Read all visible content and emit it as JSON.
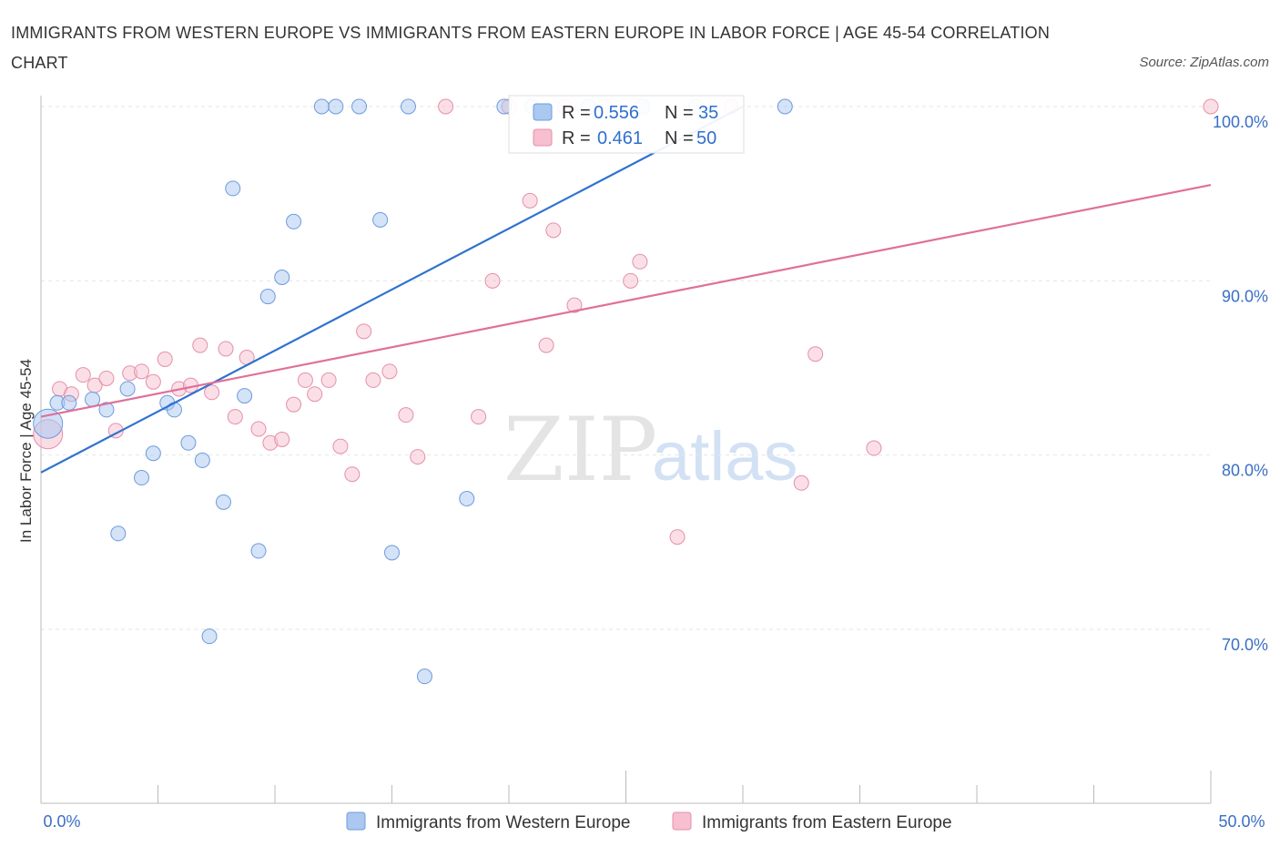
{
  "header": {
    "title": "IMMIGRANTS FROM WESTERN EUROPE VS IMMIGRANTS FROM EASTERN EUROPE IN LABOR FORCE | AGE 45-54 CORRELATION CHART",
    "source": "Source: ZipAtlas.com"
  },
  "watermark": {
    "zip": "ZIP",
    "atlas": "atlas"
  },
  "colors": {
    "western_fill": "#aac8f0",
    "western_stroke": "#6d9bdc",
    "western_line": "#2f72d0",
    "eastern_fill": "#f7bfd0",
    "eastern_stroke": "#e58fab",
    "eastern_line": "#e07099",
    "grid": "#e6e6e6",
    "axis_label": "#3a6fc4"
  },
  "stats": {
    "western": {
      "r_label": "R =",
      "r_value": "0.556",
      "n_label": "N =",
      "n_value": "35"
    },
    "eastern": {
      "r_label": "R =",
      "r_value": "0.461",
      "n_label": "N =",
      "n_value": "50"
    }
  },
  "chart_data": {
    "type": "scatter",
    "title": "IMMIGRANTS FROM WESTERN EUROPE VS IMMIGRANTS FROM EASTERN EUROPE IN LABOR FORCE | AGE 45-54 CORRELATION CHART",
    "xlabel": "",
    "ylabel": "In Labor Force | Age 45-54",
    "xlim": [
      0,
      50
    ],
    "ylim": [
      60,
      100
    ],
    "x_tick_labels": [
      {
        "value": 0,
        "label": "0.0%"
      },
      {
        "value": 50,
        "label": "50.0%"
      }
    ],
    "y_tick_labels": [
      {
        "value": 100,
        "label": "100.0%"
      },
      {
        "value": 90,
        "label": "90.0%"
      },
      {
        "value": 80,
        "label": "80.0%"
      },
      {
        "value": 70,
        "label": "70.0%"
      }
    ],
    "grid": true,
    "legend_position": "bottom",
    "series": [
      {
        "name": "Immigrants from Western Europe",
        "color": "western",
        "trend": {
          "x": [
            0,
            30
          ],
          "y": [
            79.0,
            100.0
          ]
        },
        "points": [
          {
            "x": 0.3,
            "y": 81.8,
            "big": true
          },
          {
            "x": 0.7,
            "y": 83.0
          },
          {
            "x": 1.2,
            "y": 83.0
          },
          {
            "x": 2.2,
            "y": 83.2
          },
          {
            "x": 2.8,
            "y": 82.6
          },
          {
            "x": 3.7,
            "y": 83.8
          },
          {
            "x": 4.3,
            "y": 78.7
          },
          {
            "x": 3.3,
            "y": 75.5
          },
          {
            "x": 4.8,
            "y": 80.1
          },
          {
            "x": 5.4,
            "y": 83.0
          },
          {
            "x": 5.7,
            "y": 82.6
          },
          {
            "x": 6.3,
            "y": 80.7
          },
          {
            "x": 6.9,
            "y": 79.7
          },
          {
            "x": 7.2,
            "y": 69.6
          },
          {
            "x": 7.8,
            "y": 77.3
          },
          {
            "x": 8.2,
            "y": 95.3
          },
          {
            "x": 8.7,
            "y": 83.4
          },
          {
            "x": 9.3,
            "y": 74.5
          },
          {
            "x": 9.7,
            "y": 89.1
          },
          {
            "x": 10.3,
            "y": 90.2
          },
          {
            "x": 10.8,
            "y": 93.4
          },
          {
            "x": 12.0,
            "y": 100.0
          },
          {
            "x": 12.6,
            "y": 100.0
          },
          {
            "x": 13.6,
            "y": 100.0
          },
          {
            "x": 14.5,
            "y": 93.5
          },
          {
            "x": 15.0,
            "y": 74.4
          },
          {
            "x": 15.7,
            "y": 100.0
          },
          {
            "x": 16.4,
            "y": 67.3
          },
          {
            "x": 18.2,
            "y": 77.5
          },
          {
            "x": 19.8,
            "y": 100.0
          },
          {
            "x": 21.0,
            "y": 100.0
          },
          {
            "x": 23.4,
            "y": 100.0
          },
          {
            "x": 25.7,
            "y": 100.0
          },
          {
            "x": 28.0,
            "y": 100.0
          },
          {
            "x": 31.8,
            "y": 100.0
          }
        ]
      },
      {
        "name": "Immigrants from Eastern Europe",
        "color": "eastern",
        "trend": {
          "x": [
            0,
            50
          ],
          "y": [
            82.2,
            95.5
          ]
        },
        "points": [
          {
            "x": 0.3,
            "y": 81.2,
            "big": true
          },
          {
            "x": 0.8,
            "y": 83.8
          },
          {
            "x": 1.3,
            "y": 83.5
          },
          {
            "x": 1.8,
            "y": 84.6
          },
          {
            "x": 2.3,
            "y": 84.0
          },
          {
            "x": 2.8,
            "y": 84.4
          },
          {
            "x": 3.2,
            "y": 81.4
          },
          {
            "x": 3.8,
            "y": 84.7
          },
          {
            "x": 4.3,
            "y": 84.8
          },
          {
            "x": 4.8,
            "y": 84.2
          },
          {
            "x": 5.3,
            "y": 85.5
          },
          {
            "x": 5.9,
            "y": 83.8
          },
          {
            "x": 6.4,
            "y": 84.0
          },
          {
            "x": 6.8,
            "y": 86.3
          },
          {
            "x": 7.3,
            "y": 83.6
          },
          {
            "x": 7.9,
            "y": 86.1
          },
          {
            "x": 8.3,
            "y": 82.2
          },
          {
            "x": 8.8,
            "y": 85.6
          },
          {
            "x": 9.3,
            "y": 81.5
          },
          {
            "x": 9.8,
            "y": 80.7
          },
          {
            "x": 10.3,
            "y": 80.9
          },
          {
            "x": 10.8,
            "y": 82.9
          },
          {
            "x": 11.3,
            "y": 84.3
          },
          {
            "x": 11.7,
            "y": 83.5
          },
          {
            "x": 12.3,
            "y": 84.3
          },
          {
            "x": 12.8,
            "y": 80.5
          },
          {
            "x": 13.3,
            "y": 78.9
          },
          {
            "x": 13.8,
            "y": 87.1
          },
          {
            "x": 14.2,
            "y": 84.3
          },
          {
            "x": 14.9,
            "y": 84.8
          },
          {
            "x": 15.6,
            "y": 82.3
          },
          {
            "x": 16.1,
            "y": 79.9
          },
          {
            "x": 17.3,
            "y": 100.0
          },
          {
            "x": 18.7,
            "y": 82.2
          },
          {
            "x": 19.3,
            "y": 90.0
          },
          {
            "x": 20.0,
            "y": 100.0
          },
          {
            "x": 20.9,
            "y": 94.6
          },
          {
            "x": 21.6,
            "y": 86.3
          },
          {
            "x": 21.9,
            "y": 92.9
          },
          {
            "x": 22.4,
            "y": 100.0
          },
          {
            "x": 22.8,
            "y": 88.6
          },
          {
            "x": 24.1,
            "y": 100.0
          },
          {
            "x": 25.2,
            "y": 90.0
          },
          {
            "x": 25.6,
            "y": 91.1
          },
          {
            "x": 27.2,
            "y": 75.3
          },
          {
            "x": 29.5,
            "y": 100.0
          },
          {
            "x": 32.5,
            "y": 78.4
          },
          {
            "x": 33.1,
            "y": 85.8
          },
          {
            "x": 35.6,
            "y": 80.4
          },
          {
            "x": 50.0,
            "y": 100.0
          }
        ]
      }
    ]
  }
}
